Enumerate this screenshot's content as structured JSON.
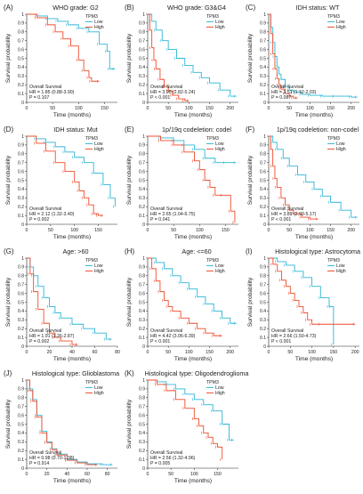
{
  "legend_title": "TPM3",
  "ylabel": "Survival probability",
  "xlabel": "Time (months)",
  "annotation_title": "Overall Survival",
  "colors": {
    "Low": "#2cb5d6",
    "High": "#ef4b2c"
  },
  "chart_data": [
    {
      "type": "line",
      "panel": "(A)",
      "title": "WHO grade: G2",
      "hr": "HR = 1.85 (0.88-3.90)",
      "p": "P = 0.107",
      "xlim": [
        0,
        175
      ],
      "xticks": [
        0,
        50,
        100,
        150
      ],
      "ylim": [
        0,
        1
      ],
      "yticks": [
        0,
        0.1,
        0.2,
        0.3,
        0.4,
        0.5,
        0.6,
        0.7,
        0.8,
        0.9,
        1
      ],
      "series": [
        {
          "name": "Low",
          "x": [
            0,
            20,
            40,
            60,
            80,
            100,
            120,
            140,
            155,
            160,
            170
          ],
          "y": [
            1,
            0.98,
            0.95,
            0.92,
            0.88,
            0.84,
            0.8,
            0.66,
            0.58,
            0.38,
            0.38
          ]
        },
        {
          "name": "High",
          "x": [
            0,
            20,
            40,
            55,
            70,
            85,
            100,
            110,
            120,
            125,
            140
          ],
          "y": [
            1,
            0.96,
            0.88,
            0.8,
            0.72,
            0.64,
            0.48,
            0.36,
            0.28,
            0.24,
            0.24
          ]
        }
      ]
    },
    {
      "type": "line",
      "panel": "(B)",
      "title": "WHO grade: G3&G4",
      "hr": "HR = 3.90 (2.82-5.24)",
      "p": "P < 0.001",
      "xlim": [
        0,
        220
      ],
      "xticks": [
        0,
        50,
        100,
        150,
        200
      ],
      "ylim": [
        0,
        1
      ],
      "yticks": [
        0,
        0.1,
        0.2,
        0.3,
        0.4,
        0.5,
        0.6,
        0.7,
        0.8,
        0.9,
        1
      ],
      "series": [
        {
          "name": "Low",
          "x": [
            0,
            10,
            20,
            35,
            50,
            70,
            90,
            110,
            130,
            150,
            175,
            200,
            215
          ],
          "y": [
            1,
            0.92,
            0.82,
            0.7,
            0.6,
            0.5,
            0.42,
            0.34,
            0.28,
            0.22,
            0.14,
            0.07,
            0.07
          ]
        },
        {
          "name": "High",
          "x": [
            0,
            5,
            10,
            15,
            20,
            30,
            40,
            50,
            60,
            75,
            90,
            100
          ],
          "y": [
            1,
            0.82,
            0.62,
            0.48,
            0.38,
            0.26,
            0.18,
            0.13,
            0.08,
            0.04,
            0.02,
            0.02
          ]
        }
      ]
    },
    {
      "type": "line",
      "panel": "(C)",
      "title": "IDH status: WT",
      "hr": "HR = 1.51 (1.12-2.03)",
      "p": "P = 0.007",
      "xlim": [
        0,
        220
      ],
      "xticks": [
        0,
        50,
        100,
        150,
        200
      ],
      "ylim": [
        0,
        1
      ],
      "yticks": [
        0,
        0.1,
        0.2,
        0.3,
        0.4,
        0.5,
        0.6,
        0.7,
        0.8,
        0.9,
        1
      ],
      "series": [
        {
          "name": "Low",
          "x": [
            0,
            5,
            10,
            15,
            20,
            25,
            30,
            40,
            50,
            60,
            80,
            100,
            130,
            160,
            200,
            215
          ],
          "y": [
            1,
            0.85,
            0.68,
            0.52,
            0.4,
            0.32,
            0.26,
            0.18,
            0.14,
            0.12,
            0.09,
            0.08,
            0.07,
            0.07,
            0.06,
            0.06
          ]
        },
        {
          "name": "High",
          "x": [
            0,
            5,
            10,
            15,
            20,
            25,
            30,
            40,
            50,
            60,
            70
          ],
          "y": [
            1,
            0.78,
            0.55,
            0.38,
            0.27,
            0.2,
            0.15,
            0.1,
            0.07,
            0.05,
            0.05
          ]
        }
      ]
    },
    {
      "type": "line",
      "panel": "(D)",
      "title": "IDH status: Mut",
      "hr": "HR = 2.12 (1.32-3.40)",
      "p": "P = 0.002",
      "xlim": [
        0,
        190
      ],
      "xticks": [
        0,
        50,
        100,
        150
      ],
      "ylim": [
        0,
        1
      ],
      "yticks": [
        0,
        0.1,
        0.2,
        0.3,
        0.4,
        0.5,
        0.6,
        0.7,
        0.8,
        0.9,
        1
      ],
      "series": [
        {
          "name": "Low",
          "x": [
            0,
            20,
            40,
            60,
            80,
            100,
            120,
            140,
            160,
            175,
            185
          ],
          "y": [
            1,
            0.97,
            0.93,
            0.88,
            0.82,
            0.76,
            0.7,
            0.58,
            0.45,
            0.3,
            0.2
          ]
        },
        {
          "name": "High",
          "x": [
            0,
            20,
            40,
            60,
            80,
            100,
            110,
            120,
            130,
            140,
            150,
            160
          ],
          "y": [
            1,
            0.92,
            0.83,
            0.7,
            0.6,
            0.48,
            0.38,
            0.3,
            0.22,
            0.12,
            0.1,
            0.1
          ]
        }
      ]
    },
    {
      "type": "line",
      "panel": "(E)",
      "title": "1p/19q codeletion: codel",
      "hr": "HR = 2.65 (1.04-6.75)",
      "p": "P = 0.041",
      "xlim": [
        0,
        175
      ],
      "xticks": [
        0,
        50,
        100,
        150
      ],
      "ylim": [
        0,
        1
      ],
      "yticks": [
        0,
        0.1,
        0.2,
        0.3,
        0.4,
        0.5,
        0.6,
        0.7,
        0.8,
        0.9,
        1
      ],
      "series": [
        {
          "name": "Low",
          "x": [
            0,
            25,
            50,
            70,
            90,
            110,
            130,
            150,
            170
          ],
          "y": [
            1,
            0.98,
            0.95,
            0.9,
            0.85,
            0.75,
            0.7,
            0.7,
            0.7
          ]
        },
        {
          "name": "High",
          "x": [
            0,
            25,
            50,
            70,
            90,
            100,
            110,
            120,
            130,
            145,
            160,
            168
          ],
          "y": [
            1,
            0.95,
            0.9,
            0.82,
            0.72,
            0.62,
            0.5,
            0.42,
            0.33,
            0.33,
            0.15,
            0.02
          ]
        }
      ]
    },
    {
      "type": "line",
      "panel": "(F)",
      "title": "1p/19q codeletion: non-codel",
      "hr": "HR = 3.89 (2.93-5.17)",
      "p": "P < 0.001",
      "xlim": [
        0,
        220
      ],
      "xticks": [
        0,
        50,
        100,
        150,
        200
      ],
      "ylim": [
        0,
        1
      ],
      "yticks": [
        0,
        0.1,
        0.2,
        0.3,
        0.4,
        0.5,
        0.6,
        0.7,
        0.8,
        0.9,
        1
      ],
      "series": [
        {
          "name": "Low",
          "x": [
            0,
            10,
            20,
            35,
            50,
            70,
            90,
            110,
            130,
            150,
            175,
            200,
            215
          ],
          "y": [
            1,
            0.93,
            0.85,
            0.75,
            0.66,
            0.56,
            0.48,
            0.4,
            0.32,
            0.25,
            0.16,
            0.08,
            0.08
          ]
        },
        {
          "name": "High",
          "x": [
            0,
            5,
            10,
            15,
            20,
            30,
            40,
            50,
            60,
            80,
            100,
            120
          ],
          "y": [
            1,
            0.85,
            0.66,
            0.52,
            0.42,
            0.3,
            0.22,
            0.16,
            0.12,
            0.08,
            0.06,
            0.06
          ]
        }
      ]
    },
    {
      "type": "line",
      "panel": "(G)",
      "title": "Age: >60",
      "hr": "HR = 1.91 (1.26-2.87)",
      "p": "P = 0.002",
      "xlim": [
        0,
        80
      ],
      "xticks": [
        0,
        20,
        40,
        60,
        80
      ],
      "ylim": [
        0,
        1
      ],
      "yticks": [
        0,
        0.1,
        0.2,
        0.3,
        0.4,
        0.5,
        0.6,
        0.7,
        0.8,
        0.9,
        1
      ],
      "series": [
        {
          "name": "Low",
          "x": [
            0,
            3,
            6,
            10,
            15,
            20,
            25,
            30,
            40,
            50,
            60,
            70,
            75
          ],
          "y": [
            1,
            0.9,
            0.8,
            0.68,
            0.55,
            0.45,
            0.38,
            0.32,
            0.25,
            0.2,
            0.15,
            0.08,
            0.08
          ]
        },
        {
          "name": "High",
          "x": [
            0,
            3,
            6,
            10,
            15,
            20,
            25,
            30,
            40,
            45
          ],
          "y": [
            1,
            0.82,
            0.62,
            0.42,
            0.26,
            0.15,
            0.1,
            0.06,
            0.02,
            0.02
          ]
        }
      ]
    },
    {
      "type": "line",
      "panel": "(H)",
      "title": "Age: <=60",
      "hr": "HR = 4.42 (3.06-6.39)",
      "p": "P < 0.001",
      "xlim": [
        0,
        220
      ],
      "xticks": [
        0,
        50,
        100,
        150,
        200
      ],
      "ylim": [
        0,
        1
      ],
      "yticks": [
        0,
        0.1,
        0.2,
        0.3,
        0.4,
        0.5,
        0.6,
        0.7,
        0.8,
        0.9,
        1
      ],
      "series": [
        {
          "name": "Low",
          "x": [
            0,
            20,
            40,
            60,
            80,
            100,
            120,
            140,
            160,
            180,
            200,
            215
          ],
          "y": [
            1,
            0.95,
            0.88,
            0.8,
            0.72,
            0.65,
            0.56,
            0.48,
            0.4,
            0.32,
            0.26,
            0.26
          ]
        },
        {
          "name": "High",
          "x": [
            0,
            10,
            20,
            30,
            40,
            50,
            60,
            80,
            100,
            120,
            140,
            160,
            180
          ],
          "y": [
            1,
            0.88,
            0.74,
            0.62,
            0.52,
            0.45,
            0.4,
            0.32,
            0.26,
            0.2,
            0.15,
            0.12,
            0.12
          ]
        }
      ]
    },
    {
      "type": "line",
      "panel": "(I)",
      "title": "Histological type: Astrocytoma",
      "hr": "HR = 2.66 (1.50-4.73)",
      "p": "P < 0.001",
      "xlim": [
        0,
        210
      ],
      "xticks": [
        0,
        50,
        100,
        150,
        200
      ],
      "ylim": [
        0,
        1
      ],
      "yticks": [
        0,
        0.1,
        0.2,
        0.3,
        0.4,
        0.5,
        0.6,
        0.7,
        0.8,
        0.9,
        1
      ],
      "series": [
        {
          "name": "Low",
          "x": [
            0,
            20,
            40,
            60,
            80,
            100,
            120,
            140,
            145,
            150
          ],
          "y": [
            1,
            0.96,
            0.92,
            0.85,
            0.78,
            0.68,
            0.55,
            0.45,
            0.45,
            0.02
          ]
        },
        {
          "name": "High",
          "x": [
            0,
            10,
            20,
            30,
            40,
            50,
            60,
            70,
            80,
            90,
            100,
            120,
            200
          ],
          "y": [
            1,
            0.93,
            0.85,
            0.75,
            0.68,
            0.6,
            0.52,
            0.45,
            0.38,
            0.3,
            0.25,
            0.25,
            0.25
          ]
        }
      ]
    },
    {
      "type": "line",
      "panel": "(J)",
      "title": "Histological type: Glioblastoma",
      "hr": "HR = 0.98 (0.70-1.38)",
      "p": "P = 0.914",
      "xlim": [
        0,
        90
      ],
      "xticks": [
        0,
        20,
        40,
        60,
        80
      ],
      "ylim": [
        0,
        1
      ],
      "yticks": [
        0,
        0.1,
        0.2,
        0.3,
        0.4,
        0.5,
        0.6,
        0.7,
        0.8,
        0.9,
        1
      ],
      "series": [
        {
          "name": "Low",
          "x": [
            0,
            3,
            6,
            10,
            15,
            20,
            25,
            30,
            40,
            50,
            60,
            75,
            85
          ],
          "y": [
            1,
            0.9,
            0.78,
            0.6,
            0.42,
            0.3,
            0.22,
            0.16,
            0.1,
            0.07,
            0.05,
            0.04,
            0.04
          ]
        },
        {
          "name": "High",
          "x": [
            0,
            3,
            6,
            10,
            15,
            20,
            25,
            30,
            40,
            50,
            60,
            70
          ],
          "y": [
            1,
            0.88,
            0.76,
            0.58,
            0.4,
            0.29,
            0.21,
            0.15,
            0.09,
            0.06,
            0.04,
            0.04
          ]
        }
      ]
    },
    {
      "type": "line",
      "panel": "(K)",
      "title": "Histological type: Oligodendroglioma",
      "hr": "HR = 2.56 (1.32-4.96)",
      "p": "P = 0.005",
      "xlim": [
        0,
        195
      ],
      "xticks": [
        0,
        50,
        100,
        150
      ],
      "ylim": [
        0,
        1
      ],
      "yticks": [
        0,
        0.1,
        0.2,
        0.3,
        0.4,
        0.5,
        0.6,
        0.7,
        0.8,
        0.9,
        1
      ],
      "series": [
        {
          "name": "Low",
          "x": [
            0,
            20,
            40,
            60,
            80,
            100,
            120,
            140,
            160,
            175,
            185
          ],
          "y": [
            1,
            0.98,
            0.95,
            0.9,
            0.84,
            0.78,
            0.72,
            0.65,
            0.5,
            0.32,
            0.32
          ]
        },
        {
          "name": "High",
          "x": [
            0,
            20,
            40,
            60,
            80,
            100,
            110,
            120,
            130,
            140,
            150,
            160
          ],
          "y": [
            1,
            0.95,
            0.88,
            0.78,
            0.68,
            0.56,
            0.48,
            0.4,
            0.35,
            0.28,
            0.24,
            0.1
          ]
        }
      ]
    }
  ]
}
